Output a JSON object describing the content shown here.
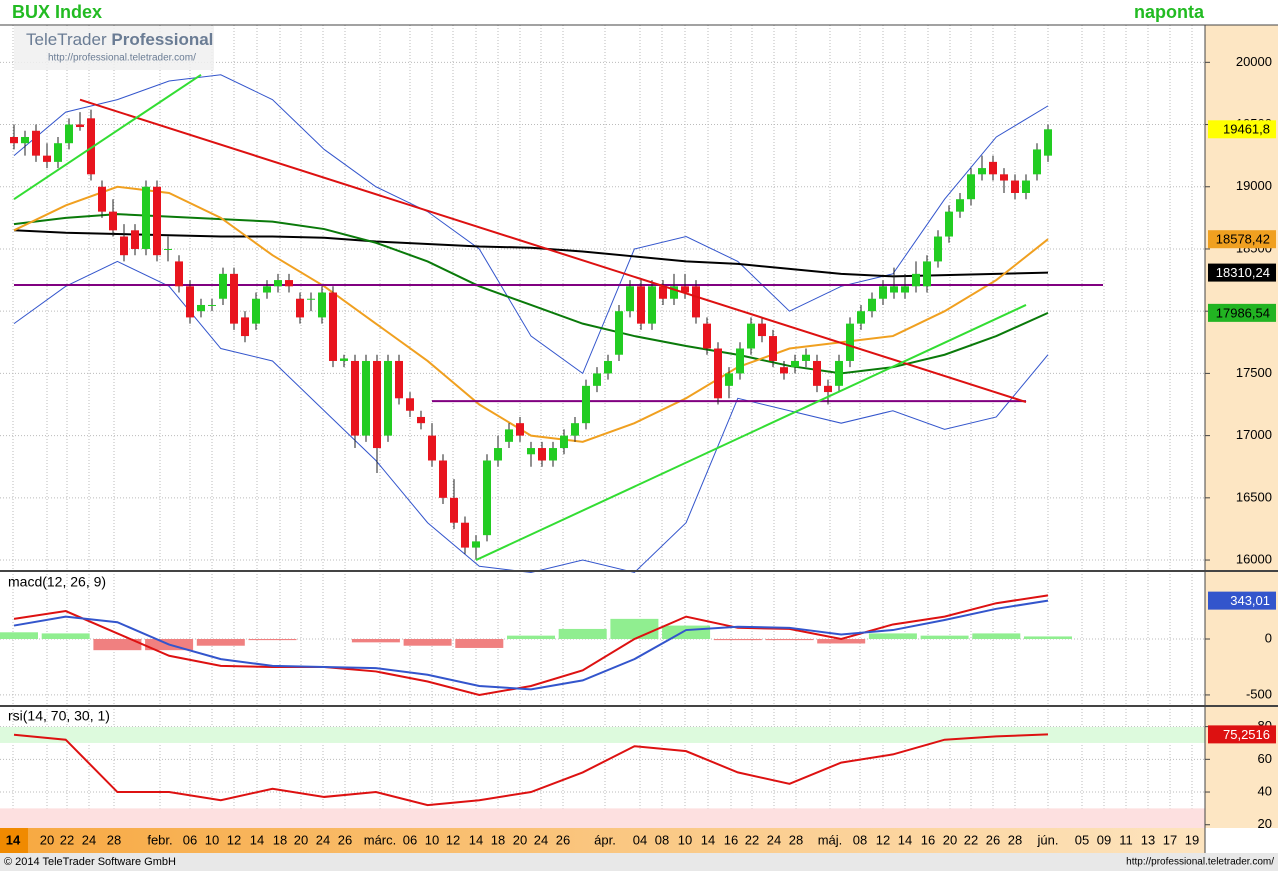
{
  "header": {
    "title": "BUX Index",
    "period": "naponta",
    "logo_a": "TeleTrader",
    "logo_b": "Professional",
    "logo_url": "http://professional.teletrader.com/"
  },
  "footer": {
    "copyright": "© 2014 TeleTrader Software GmbH",
    "url": "http://professional.teletrader.com/"
  },
  "xlabels": [
    "14",
    "20",
    "22",
    "24",
    "28",
    "febr.",
    "06",
    "10",
    "12",
    "14",
    "18",
    "20",
    "24",
    "26",
    "márc.",
    "06",
    "10",
    "12",
    "14",
    "18",
    "20",
    "24",
    "26",
    "ápr.",
    "04",
    "08",
    "10",
    "14",
    "16",
    "22",
    "24",
    "28",
    "máj.",
    "08",
    "12",
    "14",
    "16",
    "20",
    "22",
    "26",
    "28",
    "jún.",
    "05",
    "09",
    "11",
    "13",
    "17",
    "19"
  ],
  "chart_data": [
    {
      "type": "candlestick",
      "up_color": "#22cc22",
      "down_color": "#e8141e",
      "close_label": "19461,8",
      "ylim": [
        15920,
        20300
      ],
      "yticks": [
        16000,
        16500,
        17000,
        17500,
        18000,
        18500,
        19000,
        19500,
        20000
      ],
      "grid": true,
      "ohlc": [
        [
          19400,
          19500,
          19300,
          19350
        ],
        [
          19350,
          19450,
          19250,
          19400
        ],
        [
          19450,
          19500,
          19200,
          19250
        ],
        [
          19250,
          19350,
          19150,
          19200
        ],
        [
          19200,
          19400,
          19150,
          19350
        ],
        [
          19350,
          19550,
          19300,
          19500
        ],
        [
          19500,
          19600,
          19450,
          19480
        ],
        [
          19550,
          19620,
          19050,
          19100
        ],
        [
          19000,
          19050,
          18750,
          18800
        ],
        [
          18800,
          18900,
          18600,
          18650
        ],
        [
          18600,
          18700,
          18400,
          18450
        ],
        [
          18650,
          18700,
          18450,
          18500
        ],
        [
          18500,
          19050,
          18450,
          19000
        ],
        [
          19000,
          19050,
          18400,
          18450
        ],
        [
          18500,
          18600,
          18400,
          18500
        ],
        [
          18400,
          18450,
          18150,
          18200
        ],
        [
          18200,
          18250,
          17900,
          17950
        ],
        [
          18000,
          18100,
          17950,
          18050
        ],
        [
          18050,
          18100,
          18000,
          18050
        ],
        [
          18100,
          18350,
          18050,
          18300
        ],
        [
          18300,
          18350,
          17850,
          17900
        ],
        [
          17950,
          18000,
          17750,
          17800
        ],
        [
          17900,
          18150,
          17850,
          18100
        ],
        [
          18150,
          18250,
          18100,
          18200
        ],
        [
          18200,
          18300,
          18150,
          18250
        ],
        [
          18250,
          18300,
          18150,
          18200
        ],
        [
          18100,
          18150,
          17900,
          17950
        ],
        [
          18100,
          18150,
          18000,
          18100
        ],
        [
          17950,
          18200,
          17900,
          18150
        ],
        [
          18150,
          18200,
          17550,
          17600
        ],
        [
          17600,
          17650,
          17550,
          17620
        ],
        [
          17600,
          17650,
          16900,
          17000
        ],
        [
          17000,
          17650,
          16950,
          17600
        ],
        [
          17600,
          17650,
          16700,
          16900
        ],
        [
          17000,
          17650,
          16950,
          17600
        ],
        [
          17600,
          17650,
          17250,
          17300
        ],
        [
          17300,
          17350,
          17150,
          17200
        ],
        [
          17150,
          17200,
          17050,
          17100
        ],
        [
          17000,
          17100,
          16750,
          16800
        ],
        [
          16800,
          16850,
          16450,
          16500
        ],
        [
          16500,
          16650,
          16250,
          16300
        ],
        [
          16300,
          16350,
          16050,
          16100
        ],
        [
          16100,
          16200,
          16000,
          16150
        ],
        [
          16200,
          16850,
          16150,
          16800
        ],
        [
          16800,
          17000,
          16750,
          16900
        ],
        [
          16950,
          17100,
          16900,
          17050
        ],
        [
          17100,
          17150,
          16950,
          17000
        ],
        [
          16850,
          16950,
          16750,
          16900
        ],
        [
          16900,
          16950,
          16750,
          16800
        ],
        [
          16800,
          16950,
          16750,
          16900
        ],
        [
          16900,
          17050,
          16850,
          17000
        ],
        [
          17000,
          17150,
          16950,
          17100
        ],
        [
          17100,
          17450,
          17050,
          17400
        ],
        [
          17400,
          17550,
          17350,
          17500
        ],
        [
          17500,
          17650,
          17450,
          17600
        ],
        [
          17650,
          18050,
          17600,
          18000
        ],
        [
          18000,
          18250,
          17950,
          18200
        ],
        [
          18200,
          18250,
          17850,
          17900
        ],
        [
          17900,
          18250,
          17850,
          18200
        ],
        [
          18200,
          18250,
          18050,
          18100
        ],
        [
          18100,
          18300,
          18050,
          18200
        ],
        [
          18200,
          18300,
          18100,
          18150
        ],
        [
          18200,
          18250,
          17900,
          17950
        ],
        [
          17900,
          17950,
          17650,
          17700
        ],
        [
          17700,
          17750,
          17250,
          17300
        ],
        [
          17400,
          17550,
          17300,
          17500
        ],
        [
          17500,
          17750,
          17450,
          17700
        ],
        [
          17700,
          17950,
          17650,
          17900
        ],
        [
          17900,
          17950,
          17750,
          17800
        ],
        [
          17800,
          17850,
          17550,
          17600
        ],
        [
          17550,
          17600,
          17450,
          17500
        ],
        [
          17550,
          17650,
          17500,
          17600
        ],
        [
          17600,
          17700,
          17550,
          17650
        ],
        [
          17600,
          17650,
          17350,
          17400
        ],
        [
          17400,
          17450,
          17250,
          17350
        ],
        [
          17400,
          17650,
          17350,
          17600
        ],
        [
          17600,
          17950,
          17550,
          17900
        ],
        [
          17900,
          18050,
          17850,
          18000
        ],
        [
          18000,
          18150,
          17950,
          18100
        ],
        [
          18100,
          18250,
          18050,
          18200
        ],
        [
          18150,
          18350,
          18100,
          18200
        ],
        [
          18150,
          18300,
          18100,
          18200
        ],
        [
          18200,
          18400,
          18150,
          18300
        ],
        [
          18200,
          18450,
          18150,
          18400
        ],
        [
          18400,
          18650,
          18350,
          18600
        ],
        [
          18600,
          18850,
          18550,
          18800
        ],
        [
          18800,
          18950,
          18750,
          18900
        ],
        [
          18900,
          19150,
          18850,
          19100
        ],
        [
          19100,
          19250,
          19050,
          19150
        ],
        [
          19200,
          19250,
          19050,
          19100
        ],
        [
          19100,
          19150,
          18950,
          19050
        ],
        [
          19050,
          19100,
          18900,
          18950
        ],
        [
          18950,
          19100,
          18900,
          19050
        ],
        [
          19100,
          19350,
          19050,
          19300
        ],
        [
          19250,
          19500,
          19200,
          19461.8
        ]
      ],
      "series": [
        {
          "color": "#3355cc",
          "values": [
            19250,
            19600,
            19700,
            19850,
            19900,
            19700,
            19300,
            19000,
            18800,
            18500,
            17800,
            17500,
            18500,
            18600,
            18400,
            18000,
            18200,
            18300,
            18900,
            19400,
            19650
          ]
        },
        {
          "color": "#3355cc",
          "values": [
            17900,
            18200,
            18400,
            18200,
            17700,
            17600,
            17200,
            16800,
            16300,
            15950,
            15900,
            16000,
            15900,
            16300,
            17300,
            17200,
            17100,
            17200,
            17050,
            17150,
            17650
          ]
        },
        {
          "color": "#000000",
          "badge_text": "#ffffff",
          "end_label": "18310,24",
          "values": [
            18650,
            18630,
            18620,
            18610,
            18600,
            18600,
            18590,
            18560,
            18540,
            18520,
            18510,
            18480,
            18440,
            18400,
            18380,
            18340,
            18300,
            18280,
            18290,
            18300,
            18310.24
          ]
        },
        {
          "color": "#0a7a0a",
          "badge": "#22b422",
          "badge_text": "#000000",
          "end_label": "17986,54",
          "values": [
            18700,
            18750,
            18780,
            18760,
            18740,
            18720,
            18660,
            18550,
            18400,
            18200,
            18050,
            17900,
            17800,
            17720,
            17650,
            17560,
            17500,
            17550,
            17650,
            17800,
            17986.54
          ]
        },
        {
          "color": "#f0a020",
          "badge_text": "#000000",
          "end_label": "18578,42",
          "values": [
            18650,
            18850,
            19000,
            18950,
            18750,
            18450,
            18200,
            17900,
            17600,
            17250,
            17000,
            16950,
            17100,
            17300,
            17550,
            17700,
            17750,
            17800,
            18000,
            18250,
            18578.42
          ]
        }
      ],
      "levels": [
        {
          "color": "#800080",
          "value": 18210,
          "from": 0,
          "to": 99
        },
        {
          "color": "#800080",
          "value": 17277,
          "from": 38,
          "to": 92
        }
      ],
      "trendlines": [
        {
          "color": "#dd1111",
          "from": [
            6,
            19700
          ],
          "to": [
            92,
            17270
          ]
        },
        {
          "color": "#33dd33",
          "from": [
            0,
            18900
          ],
          "to": [
            17,
            19900
          ]
        },
        {
          "color": "#33dd33",
          "from": [
            42,
            16000
          ],
          "to": [
            92,
            18050
          ]
        }
      ]
    },
    {
      "type": "macd",
      "title": "macd(12, 26, 9)",
      "ylim": [
        -590,
        590
      ],
      "yticks": [
        0,
        -500
      ],
      "histogram": {
        "pos_color": "#90ee90",
        "neg_color": "#f08080",
        "values": [
          60,
          50,
          -100,
          -100,
          -60,
          -10,
          0,
          -30,
          -60,
          -80,
          30,
          90,
          180,
          120,
          -10,
          -10,
          -40,
          50,
          30,
          50,
          23
        ]
      },
      "series": [
        {
          "color": "#dd1111",
          "values": [
            180,
            250,
            50,
            -150,
            -240,
            -250,
            -250,
            -290,
            -380,
            -500,
            -420,
            -280,
            0,
            200,
            100,
            90,
            0,
            130,
            200,
            320,
            390
          ]
        },
        {
          "color": "#3355cc",
          "badge_text": "#ffffff",
          "end_label": "343,01",
          "values": [
            120,
            200,
            150,
            -50,
            -180,
            -240,
            -250,
            -260,
            -320,
            -420,
            -450,
            -370,
            -180,
            80,
            110,
            100,
            40,
            80,
            170,
            270,
            343.01
          ]
        }
      ]
    },
    {
      "type": "rsi",
      "title": "rsi(14, 70, 30, 1)",
      "ylim": [
        18,
        92
      ],
      "yticks": [
        20,
        40,
        60,
        80
      ],
      "overbought": 70,
      "oversold": 30,
      "series": [
        {
          "color": "#dd1111",
          "badge_text": "#ffffff",
          "end_label": "75,2516",
          "values": [
            75,
            72,
            40,
            40,
            35,
            42,
            37,
            40,
            32,
            35,
            40,
            52,
            68,
            65,
            52,
            45,
            58,
            63,
            72,
            74,
            75.2516
          ]
        }
      ]
    }
  ]
}
